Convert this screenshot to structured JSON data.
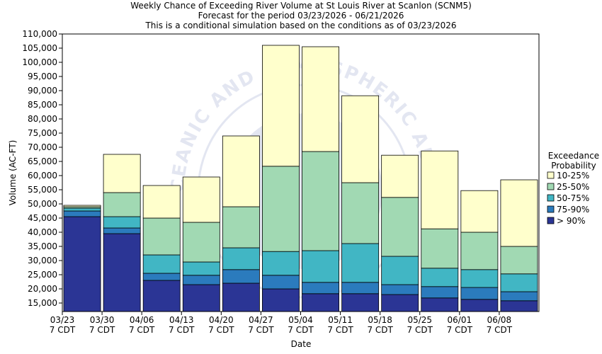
{
  "chart_data": {
    "type": "bar",
    "stacked": true,
    "title_lines": [
      "Weekly Chance of Exceeding River Volume at St Louis River at Scanlon (SCNM5)",
      "Forecast for the period 03/23/2026 - 06/21/2026",
      "This is a conditional simulation based on the conditions as of 03/23/2026"
    ],
    "xlabel": "Date",
    "ylabel": "Volume (AC-FT)",
    "ylim": [
      12000,
      110000
    ],
    "yticks": [
      "15,000",
      "20,000",
      "25,000",
      "30,000",
      "35,000",
      "40,000",
      "45,000",
      "50,000",
      "55,000",
      "60,000",
      "65,000",
      "70,000",
      "75,000",
      "80,000",
      "85,000",
      "90,000",
      "95,000",
      "100,000",
      "105,000",
      "110,000"
    ],
    "ytick_values": [
      15000,
      20000,
      25000,
      30000,
      35000,
      40000,
      45000,
      50000,
      55000,
      60000,
      65000,
      70000,
      75000,
      80000,
      85000,
      90000,
      95000,
      100000,
      105000,
      110000
    ],
    "categories": [
      {
        "top": "03/23",
        "bottom": "7 CDT"
      },
      {
        "top": "03/30",
        "bottom": "7 CDT"
      },
      {
        "top": "04/06",
        "bottom": "7 CDT"
      },
      {
        "top": "04/13",
        "bottom": "7 CDT"
      },
      {
        "top": "04/20",
        "bottom": "7 CDT"
      },
      {
        "top": "04/27",
        "bottom": "7 CDT"
      },
      {
        "top": "05/04",
        "bottom": "7 CDT"
      },
      {
        "top": "05/11",
        "bottom": "7 CDT"
      },
      {
        "top": "05/18",
        "bottom": "7 CDT"
      },
      {
        "top": "05/25",
        "bottom": "7 CDT"
      },
      {
        "top": "06/01",
        "bottom": "7 CDT"
      },
      {
        "top": "06/08",
        "bottom": "7 CDT"
      }
    ],
    "bars": [
      {
        "levels": [
          45500,
          47500,
          48500,
          49000,
          49500
        ]
      },
      {
        "levels": [
          39500,
          41500,
          45500,
          54000,
          67500
        ]
      },
      {
        "levels": [
          23000,
          25500,
          32000,
          45000,
          56500
        ]
      },
      {
        "levels": [
          21500,
          24800,
          29500,
          43500,
          59500
        ]
      },
      {
        "levels": [
          22000,
          26800,
          34500,
          49000,
          74000
        ]
      },
      {
        "levels": [
          20000,
          24800,
          33200,
          63300,
          106000
        ]
      },
      {
        "levels": [
          18300,
          22300,
          33500,
          68500,
          105500
        ]
      },
      {
        "levels": [
          18300,
          22300,
          36000,
          57500,
          88200
        ]
      },
      {
        "levels": [
          18000,
          21500,
          31500,
          52300,
          67200
        ]
      },
      {
        "levels": [
          16800,
          20800,
          27300,
          41200,
          68700
        ]
      },
      {
        "levels": [
          16300,
          20500,
          26800,
          40000,
          54700
        ]
      },
      {
        "levels": [
          15800,
          19000,
          25300,
          35000,
          58500
        ]
      }
    ],
    "series": [
      {
        "name": "> 90%",
        "color": "#2b3595"
      },
      {
        "name": "75-90%",
        "color": "#2b7bbd"
      },
      {
        "name": "50-75%",
        "color": "#41b6c4"
      },
      {
        "name": "25-50%",
        "color": "#a1d9b3"
      },
      {
        "name": "10-25%",
        "color": "#ffffcc"
      }
    ],
    "legend": {
      "title_lines": [
        "Exceedance",
        "Probability"
      ],
      "order": [
        "10-25%",
        "25-50%",
        "50-75%",
        "75-90%",
        "> 90%"
      ],
      "placement": "right"
    },
    "watermark": "NATIONAL OCEANIC AND ATMOSPHERIC ADMINISTRATION"
  }
}
